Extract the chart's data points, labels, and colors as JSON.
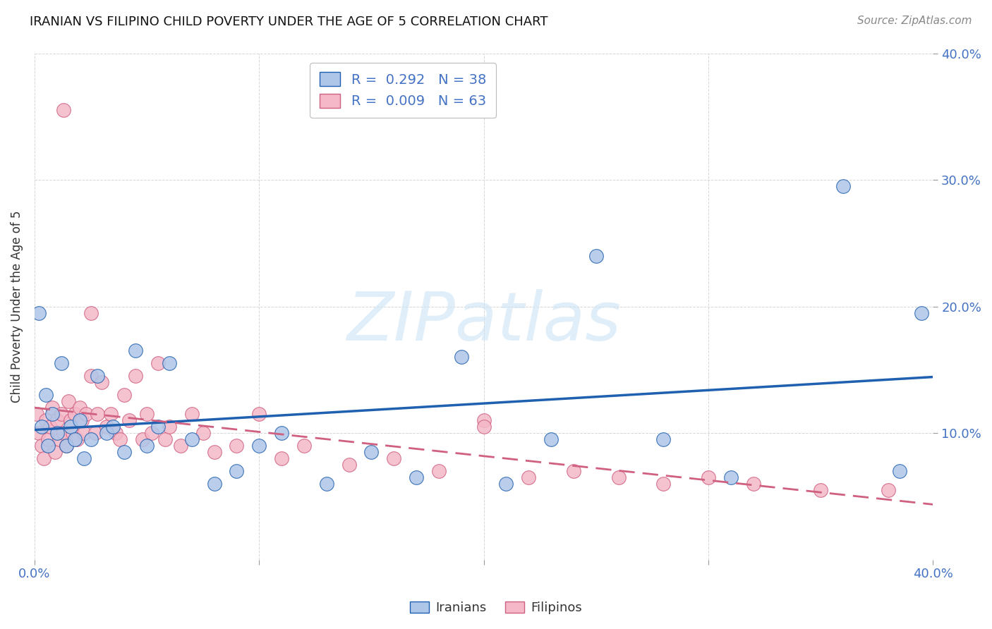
{
  "title": "IRANIAN VS FILIPINO CHILD POVERTY UNDER THE AGE OF 5 CORRELATION CHART",
  "source": "Source: ZipAtlas.com",
  "ylabel": "Child Poverty Under the Age of 5",
  "xlim": [
    0.0,
    0.4
  ],
  "ylim": [
    0.0,
    0.4
  ],
  "iranians_color": "#aec6e8",
  "filipinos_color": "#f4b8c8",
  "iranian_line_color": "#2060b0",
  "filipino_line_color": "#d06080",
  "R_iranian": 0.292,
  "N_iranian": 38,
  "R_filipino": 0.009,
  "N_filipino": 63,
  "watermark": "ZIPatlas",
  "legend_labels": [
    "Iranians",
    "Filipinos"
  ],
  "iranians_x": [
    0.002,
    0.003,
    0.005,
    0.006,
    0.008,
    0.01,
    0.012,
    0.014,
    0.016,
    0.018,
    0.02,
    0.022,
    0.025,
    0.028,
    0.032,
    0.035,
    0.04,
    0.045,
    0.05,
    0.055,
    0.06,
    0.07,
    0.08,
    0.09,
    0.1,
    0.11,
    0.13,
    0.15,
    0.17,
    0.19,
    0.21,
    0.23,
    0.25,
    0.28,
    0.31,
    0.36,
    0.385,
    0.395
  ],
  "iranians_y": [
    0.195,
    0.105,
    0.13,
    0.09,
    0.115,
    0.1,
    0.155,
    0.09,
    0.105,
    0.095,
    0.11,
    0.08,
    0.095,
    0.145,
    0.1,
    0.105,
    0.085,
    0.165,
    0.09,
    0.105,
    0.155,
    0.095,
    0.06,
    0.07,
    0.09,
    0.1,
    0.06,
    0.085,
    0.065,
    0.16,
    0.06,
    0.095,
    0.24,
    0.095,
    0.065,
    0.295,
    0.07,
    0.195
  ],
  "filipinos_x": [
    0.001,
    0.002,
    0.003,
    0.004,
    0.005,
    0.006,
    0.007,
    0.008,
    0.009,
    0.01,
    0.011,
    0.012,
    0.013,
    0.014,
    0.015,
    0.016,
    0.017,
    0.018,
    0.019,
    0.02,
    0.021,
    0.022,
    0.023,
    0.025,
    0.027,
    0.028,
    0.03,
    0.032,
    0.034,
    0.036,
    0.038,
    0.04,
    0.042,
    0.045,
    0.048,
    0.05,
    0.052,
    0.055,
    0.058,
    0.06,
    0.065,
    0.07,
    0.075,
    0.08,
    0.09,
    0.1,
    0.11,
    0.12,
    0.14,
    0.16,
    0.18,
    0.2,
    0.22,
    0.24,
    0.26,
    0.28,
    0.3,
    0.32,
    0.35,
    0.38,
    0.013,
    0.025,
    0.2
  ],
  "filipinos_y": [
    0.115,
    0.1,
    0.09,
    0.08,
    0.11,
    0.095,
    0.105,
    0.12,
    0.085,
    0.11,
    0.095,
    0.115,
    0.1,
    0.09,
    0.125,
    0.11,
    0.1,
    0.115,
    0.095,
    0.12,
    0.11,
    0.1,
    0.115,
    0.145,
    0.1,
    0.115,
    0.14,
    0.105,
    0.115,
    0.1,
    0.095,
    0.13,
    0.11,
    0.145,
    0.095,
    0.115,
    0.1,
    0.155,
    0.095,
    0.105,
    0.09,
    0.115,
    0.1,
    0.085,
    0.09,
    0.115,
    0.08,
    0.09,
    0.075,
    0.08,
    0.07,
    0.11,
    0.065,
    0.07,
    0.065,
    0.06,
    0.065,
    0.06,
    0.055,
    0.055,
    0.355,
    0.195,
    0.105
  ]
}
